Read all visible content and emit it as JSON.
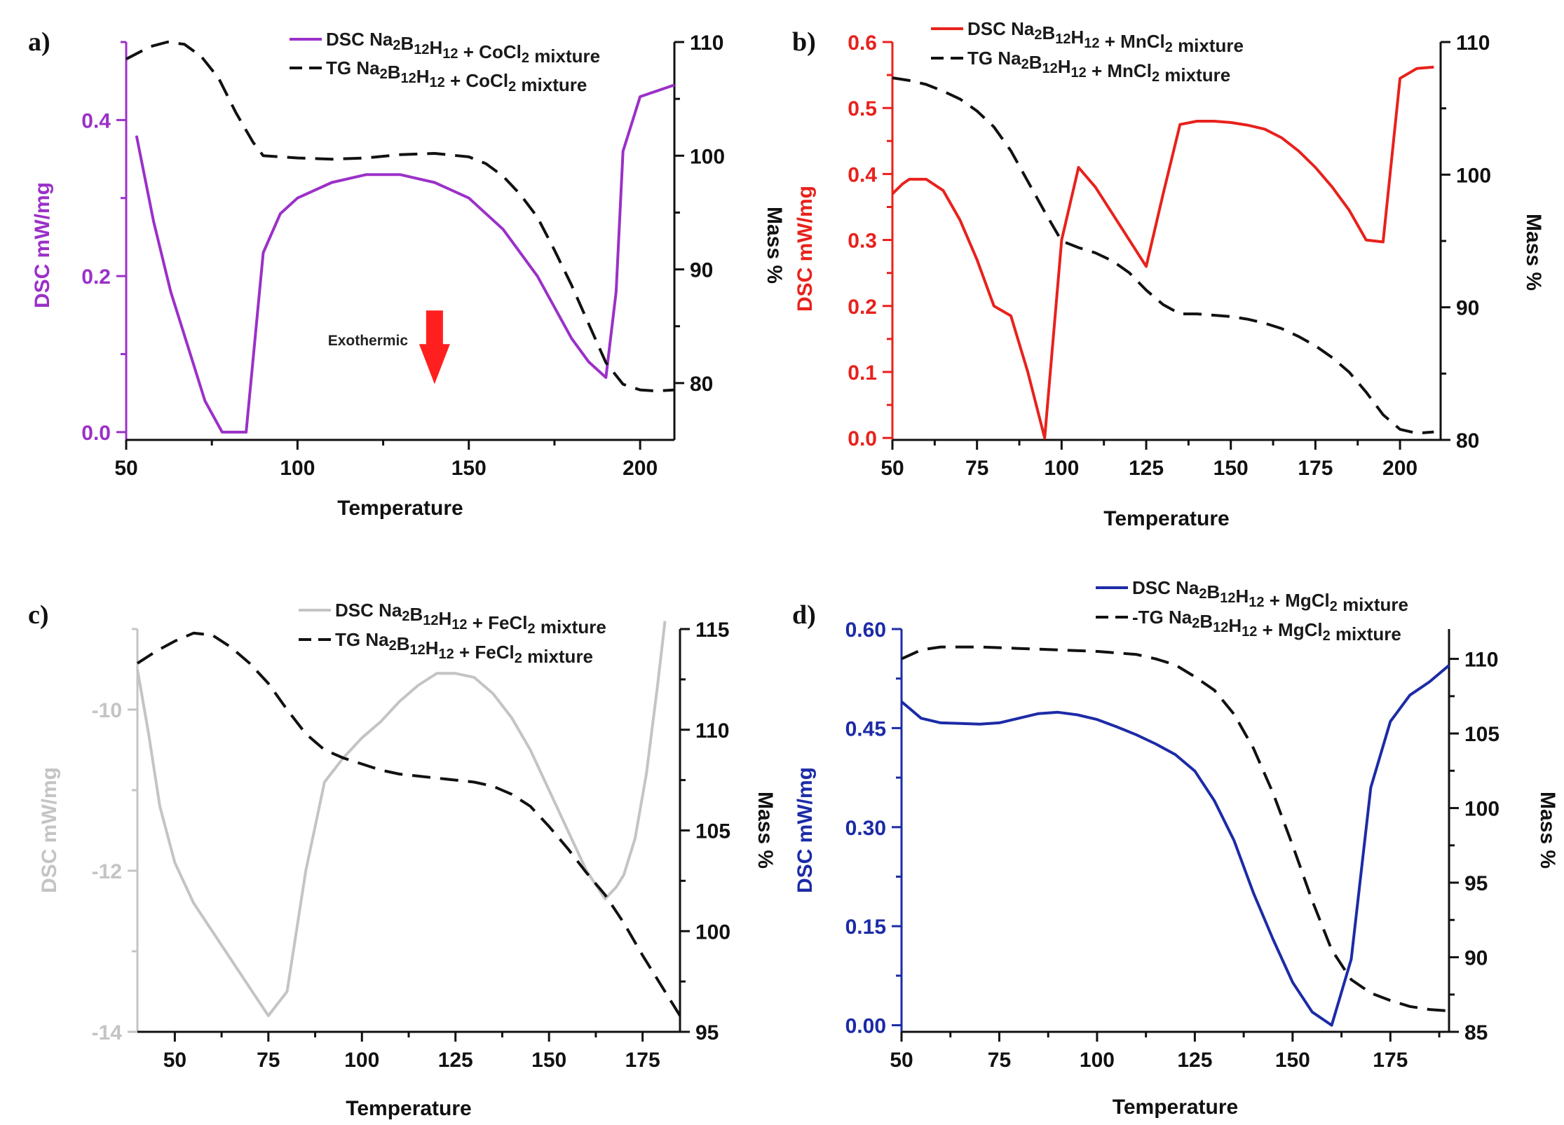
{
  "chart_data": [
    {
      "panel": "a)",
      "type": "line",
      "xlabel": "Temperature",
      "ylabel_left": "DSC mW/mg",
      "ylabel_right": "Mass %",
      "xlim": [
        50,
        210
      ],
      "ylim_left": [
        -0.01,
        0.5
      ],
      "ylim_right": [
        75,
        110
      ],
      "xticks": [
        50,
        100,
        150,
        200
      ],
      "yticks_left": [
        0.0,
        0.2,
        0.4
      ],
      "ytick_labels_left": [
        "0.0",
        "0.2",
        "0.4"
      ],
      "yticks_right": [
        80,
        90,
        100,
        110
      ],
      "color_left": "#9b30c8",
      "annotation": "Exothermic",
      "annotation_arrow_color": "#ff1f1f",
      "annotation_position": [
        140,
        0.12
      ],
      "series": [
        {
          "name": "DSC Na2B12H12 + CoCl2 mixture",
          "legend_parts": [
            [
              "DSC Na",
              0
            ],
            [
              "2",
              1
            ],
            [
              "B",
              0
            ],
            [
              "12",
              1
            ],
            [
              "H",
              0
            ],
            [
              "12",
              1
            ],
            [
              " + CoCl",
              0
            ],
            [
              "2",
              1
            ],
            [
              " mixture",
              0
            ]
          ],
          "axis": "left",
          "style": "solid",
          "color": "#9b30c8",
          "x": [
            53,
            58,
            63,
            68,
            73,
            78,
            80,
            85,
            90,
            95,
            100,
            110,
            120,
            130,
            140,
            150,
            160,
            170,
            180,
            185,
            190,
            193,
            195,
            200,
            210
          ],
          "y": [
            0.38,
            0.27,
            0.18,
            0.11,
            0.04,
            0.0,
            0.0,
            0.0,
            0.23,
            0.28,
            0.3,
            0.32,
            0.33,
            0.33,
            0.32,
            0.3,
            0.26,
            0.2,
            0.12,
            0.09,
            0.07,
            0.18,
            0.36,
            0.43,
            0.445
          ]
        },
        {
          "name": "TG Na2B12H12 + CoCl2 mixture",
          "legend_parts": [
            [
              "TG Na",
              0
            ],
            [
              "2",
              1
            ],
            [
              "B",
              0
            ],
            [
              "12",
              1
            ],
            [
              "H",
              0
            ],
            [
              "12",
              1
            ],
            [
              " + CoCl",
              0
            ],
            [
              "2",
              1
            ],
            [
              " mixture",
              0
            ]
          ],
          "axis": "right",
          "style": "dashed",
          "color": "#111111",
          "x": [
            50,
            57,
            62,
            67,
            72,
            77,
            82,
            87,
            90,
            95,
            100,
            110,
            120,
            130,
            140,
            150,
            155,
            160,
            165,
            170,
            175,
            180,
            185,
            190,
            195,
            200,
            205,
            210
          ],
          "y": [
            108.5,
            109.6,
            110,
            109.8,
            108.7,
            106.8,
            103.8,
            101.2,
            100,
            99.9,
            99.8,
            99.7,
            99.8,
            100.1,
            100.2,
            99.9,
            99.3,
            98.2,
            96.6,
            94.6,
            91.7,
            88.6,
            85.2,
            81.8,
            79.9,
            79.4,
            79.3,
            79.4
          ]
        }
      ]
    },
    {
      "panel": "b)",
      "type": "line",
      "xlabel": "Temperature",
      "ylabel_left": "DSC mW/mg",
      "ylabel_right": "Mass %",
      "xlim": [
        50,
        212
      ],
      "ylim_left": [
        -0.003,
        0.6
      ],
      "ylim_right": [
        80,
        110
      ],
      "xticks": [
        50,
        75,
        100,
        125,
        150,
        175,
        200
      ],
      "yticks_left": [
        0.0,
        0.1,
        0.2,
        0.3,
        0.4,
        0.5,
        0.6
      ],
      "ytick_labels_left": [
        "0.0",
        "0.1",
        "0.2",
        "0.3",
        "0.4",
        "0.5",
        "0.6"
      ],
      "yticks_right": [
        80,
        90,
        100,
        110
      ],
      "color_left": "#e8211c",
      "series": [
        {
          "name": "DSC Na2B12H12 + MnCl2 mixture",
          "legend_parts": [
            [
              "DSC Na",
              0
            ],
            [
              "2",
              1
            ],
            [
              "B",
              0
            ],
            [
              "12",
              1
            ],
            [
              "H",
              0
            ],
            [
              "12",
              1
            ],
            [
              " + MnCl",
              0
            ],
            [
              "2",
              1
            ],
            [
              " mixture",
              0
            ]
          ],
          "axis": "left",
          "style": "solid",
          "color": "#e8211c",
          "x": [
            50,
            53,
            55,
            60,
            65,
            70,
            75,
            80,
            85,
            90,
            95,
            100,
            105,
            110,
            115,
            120,
            125,
            130,
            135,
            140,
            145,
            150,
            155,
            160,
            165,
            170,
            175,
            180,
            185,
            190,
            195,
            200,
            205,
            210
          ],
          "y": [
            0.37,
            0.385,
            0.392,
            0.392,
            0.375,
            0.33,
            0.27,
            0.2,
            0.185,
            0.1,
            0.0,
            0.3,
            0.41,
            0.38,
            0.34,
            0.3,
            0.26,
            0.37,
            0.475,
            0.48,
            0.48,
            0.478,
            0.474,
            0.468,
            0.455,
            0.435,
            0.41,
            0.38,
            0.345,
            0.3,
            0.297,
            0.545,
            0.56,
            0.562
          ]
        },
        {
          "name": "TG Na2B12H12 + MnCl2 mixture",
          "legend_parts": [
            [
              "TG Na",
              0
            ],
            [
              "2",
              1
            ],
            [
              "B",
              0
            ],
            [
              "12",
              1
            ],
            [
              "H",
              0
            ],
            [
              "12",
              1
            ],
            [
              " + MnCl",
              0
            ],
            [
              "2",
              1
            ],
            [
              " mixture",
              0
            ]
          ],
          "axis": "right",
          "style": "dashed",
          "color": "#111111",
          "x": [
            50,
            55,
            60,
            65,
            70,
            75,
            80,
            85,
            90,
            95,
            100,
            105,
            110,
            115,
            120,
            125,
            130,
            135,
            140,
            145,
            150,
            155,
            160,
            165,
            170,
            175,
            180,
            185,
            190,
            195,
            200,
            205,
            210
          ],
          "y": [
            107.3,
            107.1,
            106.8,
            106.3,
            105.7,
            104.8,
            103.6,
            101.8,
            99.5,
            97.2,
            95.0,
            94.5,
            94.1,
            93.5,
            92.6,
            91.3,
            90.2,
            89.5,
            89.5,
            89.4,
            89.3,
            89.1,
            88.8,
            88.4,
            87.8,
            87.1,
            86.2,
            85.1,
            83.6,
            81.9,
            80.8,
            80.5,
            80.6
          ]
        }
      ]
    },
    {
      "panel": "c)",
      "type": "line",
      "xlabel": "Temperature",
      "ylabel_left": "DSC mW/mg",
      "ylabel_right": "Mass %",
      "xlim": [
        40,
        185
      ],
      "ylim_left": [
        -14,
        -9
      ],
      "ylim_right": [
        95,
        115
      ],
      "xticks": [
        50,
        75,
        100,
        125,
        150,
        175
      ],
      "yticks_left": [
        -14,
        -12,
        -10
      ],
      "ytick_labels_left": [
        "-14",
        "-12",
        "-10"
      ],
      "yticks_right": [
        95,
        100,
        105,
        110,
        115
      ],
      "color_left": "#c4c4c4",
      "series": [
        {
          "name": "DSC Na2B12H12 + FeCl2 mixture",
          "legend_parts": [
            [
              "DSC Na",
              0
            ],
            [
              "2",
              1
            ],
            [
              "B",
              0
            ],
            [
              "12",
              1
            ],
            [
              "H",
              0
            ],
            [
              "12",
              1
            ],
            [
              " + FeCl",
              0
            ],
            [
              "2",
              1
            ],
            [
              " mixture",
              0
            ]
          ],
          "axis": "left",
          "style": "solid",
          "color": "#c4c4c4",
          "x": [
            40,
            43,
            46,
            50,
            55,
            60,
            65,
            70,
            75,
            80,
            85,
            90,
            95,
            100,
            105,
            110,
            115,
            120,
            125,
            130,
            135,
            140,
            145,
            150,
            155,
            160,
            165,
            168,
            170,
            173,
            176,
            179,
            181
          ],
          "y": [
            -9.5,
            -10.3,
            -11.2,
            -11.9,
            -12.4,
            -12.75,
            -13.1,
            -13.45,
            -13.8,
            -13.5,
            -12.0,
            -10.9,
            -10.6,
            -10.35,
            -10.15,
            -9.9,
            -9.7,
            -9.55,
            -9.55,
            -9.6,
            -9.8,
            -10.1,
            -10.5,
            -11.0,
            -11.5,
            -12.0,
            -12.35,
            -12.2,
            -12.05,
            -11.6,
            -10.8,
            -9.7,
            -8.9
          ]
        },
        {
          "name": "TG Na2B12H12 + FeCl2 mixture",
          "legend_parts": [
            [
              "TG Na",
              0
            ],
            [
              "2",
              1
            ],
            [
              "B",
              0
            ],
            [
              "12",
              1
            ],
            [
              "H",
              0
            ],
            [
              "12",
              1
            ],
            [
              " + FeCl",
              0
            ],
            [
              "2",
              1
            ],
            [
              " mixture",
              0
            ]
          ],
          "axis": "right",
          "style": "dashed",
          "color": "#111111",
          "x": [
            40,
            45,
            50,
            55,
            60,
            65,
            70,
            75,
            80,
            85,
            90,
            95,
            100,
            105,
            110,
            115,
            120,
            125,
            130,
            135,
            140,
            145,
            150,
            155,
            160,
            165,
            170,
            175,
            180,
            185
          ],
          "y": [
            113.3,
            113.9,
            114.4,
            114.8,
            114.7,
            114.1,
            113.3,
            112.3,
            111.0,
            109.8,
            109.0,
            108.6,
            108.3,
            108.0,
            107.8,
            107.7,
            107.6,
            107.5,
            107.4,
            107.2,
            106.8,
            106.2,
            105.2,
            104.1,
            102.9,
            101.8,
            100.4,
            98.8,
            97.3,
            95.8
          ]
        }
      ]
    },
    {
      "panel": "d)",
      "type": "line",
      "xlabel": "Temperature",
      "ylabel_left": "DSC mW/mg",
      "ylabel_right": "Mass %",
      "xlim": [
        50,
        190
      ],
      "ylim_left": [
        -0.01,
        0.6
      ],
      "ylim_right": [
        85,
        112
      ],
      "xticks": [
        50,
        75,
        100,
        125,
        150,
        175
      ],
      "yticks_left": [
        0.0,
        0.15,
        0.3,
        0.45,
        0.6
      ],
      "ytick_labels_left": [
        "0.00",
        "0.15",
        "0.30",
        "0.45",
        "0.60"
      ],
      "yticks_right": [
        85,
        90,
        95,
        100,
        105,
        110
      ],
      "color_left": "#1c2ba6",
      "series": [
        {
          "name": "DSC Na2B12H12 + MgCl2 mixture",
          "legend_parts": [
            [
              "DSC Na",
              0
            ],
            [
              "2",
              1
            ],
            [
              "B",
              0
            ],
            [
              "12",
              1
            ],
            [
              "H",
              0
            ],
            [
              "12",
              1
            ],
            [
              " + MgCl",
              0
            ],
            [
              "2",
              1
            ],
            [
              " mixture",
              0
            ]
          ],
          "axis": "left",
          "style": "solid",
          "color": "#1c2ba6",
          "x": [
            50,
            52,
            55,
            60,
            65,
            70,
            75,
            80,
            85,
            90,
            95,
            100,
            105,
            110,
            115,
            120,
            125,
            130,
            135,
            140,
            145,
            150,
            155,
            160,
            165,
            170,
            175,
            180,
            185,
            190
          ],
          "y": [
            0.49,
            0.48,
            0.465,
            0.458,
            0.457,
            0.456,
            0.458,
            0.465,
            0.472,
            0.474,
            0.47,
            0.463,
            0.452,
            0.44,
            0.426,
            0.41,
            0.385,
            0.34,
            0.28,
            0.2,
            0.13,
            0.065,
            0.02,
            0.0,
            0.1,
            0.36,
            0.46,
            0.5,
            0.52,
            0.545
          ]
        },
        {
          "name": "TG Na2B12H12 + MgCl2 mixture",
          "legend_parts": [
            [
              "-TG Na",
              0
            ],
            [
              "2",
              1
            ],
            [
              "B",
              0
            ],
            [
              "12",
              1
            ],
            [
              "H",
              0
            ],
            [
              "12",
              1
            ],
            [
              " + MgCl",
              0
            ],
            [
              "2",
              1
            ],
            [
              " mixture",
              0
            ]
          ],
          "axis": "right",
          "style": "dashed",
          "color": "#111111",
          "x": [
            50,
            55,
            60,
            70,
            80,
            90,
            100,
            110,
            115,
            120,
            125,
            130,
            135,
            140,
            145,
            150,
            155,
            160,
            165,
            170,
            175,
            180,
            185,
            190
          ],
          "y": [
            110.0,
            110.6,
            110.8,
            110.8,
            110.7,
            110.6,
            110.5,
            110.3,
            110.0,
            109.6,
            108.8,
            107.9,
            106.3,
            104.0,
            101.0,
            97.5,
            93.8,
            90.5,
            88.5,
            87.6,
            87.1,
            86.7,
            86.5,
            86.4
          ]
        }
      ]
    }
  ]
}
